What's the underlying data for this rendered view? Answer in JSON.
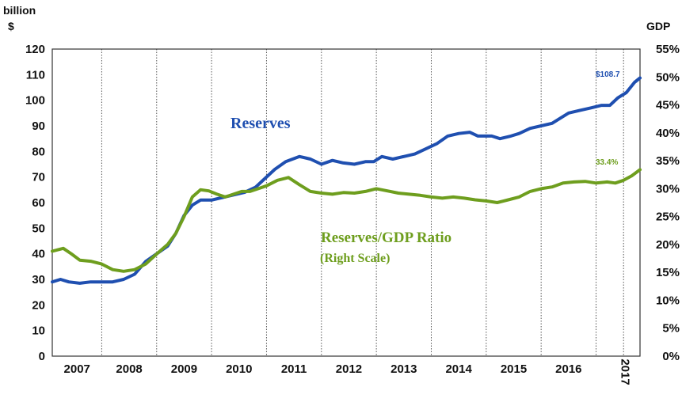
{
  "chart_data": {
    "type": "line",
    "title": "",
    "left_axis": {
      "unit_line1": "billion",
      "unit_line2": "$",
      "ylim": [
        0,
        120
      ],
      "ticks": [
        0,
        10,
        20,
        30,
        40,
        50,
        60,
        70,
        80,
        90,
        100,
        110,
        120
      ]
    },
    "right_axis": {
      "unit": "GDP",
      "ylim": [
        0,
        55
      ],
      "tick_labels": [
        "0%",
        "5%",
        "10%",
        "15%",
        "20%",
        "25%",
        "30%",
        "35%",
        "40%",
        "45%",
        "50%",
        "55%"
      ]
    },
    "x_axis": {
      "range": [
        2006.6,
        2017.3
      ],
      "year_labels": [
        "2007",
        "2008",
        "2009",
        "2010",
        "2011",
        "2012",
        "2013",
        "2014",
        "2015",
        "2016",
        "2017"
      ],
      "year_separators": [
        2007.5,
        2008.5,
        2009.5,
        2010.5,
        2011.5,
        2012.5,
        2013.5,
        2014.5,
        2015.5,
        2016.5,
        2017.0
      ]
    },
    "grid": "vertical dotted lines at year boundaries",
    "series": [
      {
        "name": "Reserves",
        "axis": "left",
        "color": "#1f4fb0",
        "end_label": "$108.7",
        "points": [
          [
            2006.6,
            29
          ],
          [
            2006.75,
            30
          ],
          [
            2006.9,
            29
          ],
          [
            2007.1,
            28.5
          ],
          [
            2007.3,
            29
          ],
          [
            2007.5,
            29
          ],
          [
            2007.7,
            29
          ],
          [
            2007.9,
            30
          ],
          [
            2008.1,
            32
          ],
          [
            2008.3,
            37
          ],
          [
            2008.5,
            40
          ],
          [
            2008.7,
            43
          ],
          [
            2008.85,
            48
          ],
          [
            2009.0,
            55
          ],
          [
            2009.15,
            59
          ],
          [
            2009.3,
            61
          ],
          [
            2009.5,
            61
          ],
          [
            2009.7,
            62
          ],
          [
            2009.9,
            63
          ],
          [
            2010.1,
            64
          ],
          [
            2010.3,
            66
          ],
          [
            2010.45,
            69
          ],
          [
            2010.65,
            73
          ],
          [
            2010.85,
            76
          ],
          [
            2011.1,
            78
          ],
          [
            2011.3,
            77
          ],
          [
            2011.5,
            75
          ],
          [
            2011.7,
            76.5
          ],
          [
            2011.9,
            75.5
          ],
          [
            2012.1,
            75
          ],
          [
            2012.3,
            76
          ],
          [
            2012.45,
            76
          ],
          [
            2012.6,
            78
          ],
          [
            2012.8,
            77
          ],
          [
            2013.0,
            78
          ],
          [
            2013.2,
            79
          ],
          [
            2013.4,
            81
          ],
          [
            2013.6,
            83
          ],
          [
            2013.8,
            86
          ],
          [
            2014.0,
            87
          ],
          [
            2014.2,
            87.5
          ],
          [
            2014.35,
            86
          ],
          [
            2014.6,
            86
          ],
          [
            2014.75,
            85
          ],
          [
            2014.95,
            86
          ],
          [
            2015.1,
            87
          ],
          [
            2015.3,
            89
          ],
          [
            2015.5,
            90
          ],
          [
            2015.7,
            91
          ],
          [
            2015.85,
            93
          ],
          [
            2016.0,
            95
          ],
          [
            2016.2,
            96
          ],
          [
            2016.4,
            97
          ],
          [
            2016.6,
            98
          ],
          [
            2016.75,
            98
          ],
          [
            2016.9,
            101
          ],
          [
            2017.05,
            103
          ],
          [
            2017.2,
            107
          ],
          [
            2017.3,
            108.7
          ]
        ]
      },
      {
        "name": "Reserves/GDP Ratio",
        "name_line2": "(Right Scale)",
        "axis": "right",
        "color": "#6e9e1e",
        "end_label": "33.4%",
        "points": [
          [
            2006.6,
            18.8
          ],
          [
            2006.8,
            19.3
          ],
          [
            2006.95,
            18.3
          ],
          [
            2007.1,
            17.2
          ],
          [
            2007.3,
            17.0
          ],
          [
            2007.5,
            16.5
          ],
          [
            2007.7,
            15.5
          ],
          [
            2007.9,
            15.2
          ],
          [
            2008.1,
            15.5
          ],
          [
            2008.3,
            16.5
          ],
          [
            2008.5,
            18.3
          ],
          [
            2008.7,
            20
          ],
          [
            2008.85,
            22
          ],
          [
            2009.0,
            25
          ],
          [
            2009.15,
            28.5
          ],
          [
            2009.3,
            29.8
          ],
          [
            2009.45,
            29.6
          ],
          [
            2009.6,
            29
          ],
          [
            2009.75,
            28.5
          ],
          [
            2009.9,
            29
          ],
          [
            2010.05,
            29.5
          ],
          [
            2010.2,
            29.5
          ],
          [
            2010.35,
            30
          ],
          [
            2010.5,
            30.5
          ],
          [
            2010.7,
            31.5
          ],
          [
            2010.9,
            32
          ],
          [
            2011.1,
            30.7
          ],
          [
            2011.3,
            29.5
          ],
          [
            2011.5,
            29.2
          ],
          [
            2011.7,
            29
          ],
          [
            2011.9,
            29.3
          ],
          [
            2012.1,
            29.2
          ],
          [
            2012.3,
            29.5
          ],
          [
            2012.5,
            30
          ],
          [
            2012.7,
            29.6
          ],
          [
            2012.9,
            29.2
          ],
          [
            2013.1,
            29
          ],
          [
            2013.3,
            28.8
          ],
          [
            2013.5,
            28.5
          ],
          [
            2013.7,
            28.3
          ],
          [
            2013.9,
            28.5
          ],
          [
            2014.1,
            28.3
          ],
          [
            2014.3,
            28
          ],
          [
            2014.5,
            27.8
          ],
          [
            2014.7,
            27.5
          ],
          [
            2014.9,
            28
          ],
          [
            2015.1,
            28.5
          ],
          [
            2015.3,
            29.5
          ],
          [
            2015.5,
            30
          ],
          [
            2015.7,
            30.3
          ],
          [
            2015.9,
            31
          ],
          [
            2016.1,
            31.2
          ],
          [
            2016.3,
            31.3
          ],
          [
            2016.5,
            31
          ],
          [
            2016.7,
            31.2
          ],
          [
            2016.85,
            31
          ],
          [
            2017.0,
            31.5
          ],
          [
            2017.15,
            32.3
          ],
          [
            2017.3,
            33.4
          ]
        ]
      }
    ]
  }
}
